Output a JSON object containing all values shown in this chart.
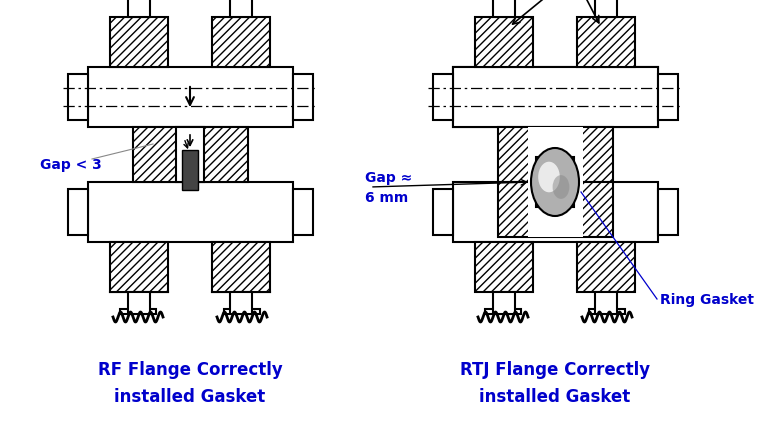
{
  "bg_color": "#ffffff",
  "text_color_blue": "#0000CC",
  "label_rf_line1": "RF Flange Correctly",
  "label_rf_line2": "installed Gasket",
  "label_rtj_line1": "RTJ Flange Correctly",
  "label_rtj_line2": "installed Gasket",
  "label_gap_rf": "Gap < 3",
  "label_gap_rtj_line1": "Gap ≈",
  "label_gap_rtj_line2": "6 mm",
  "label_ring_gasket": "Ring Gasket",
  "figsize": [
    7.68,
    4.31
  ],
  "dpi": 100
}
